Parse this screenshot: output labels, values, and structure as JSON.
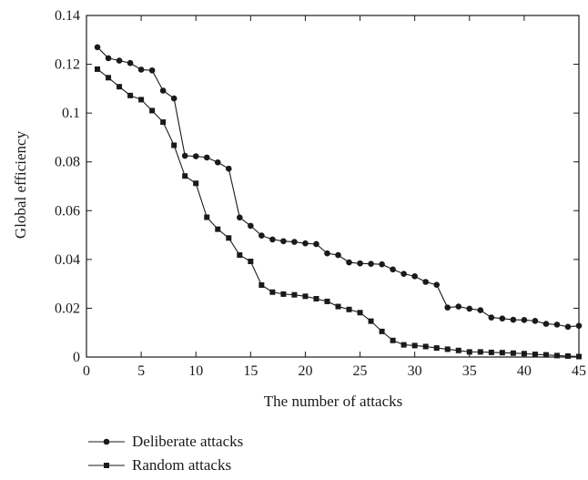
{
  "chart_data": {
    "type": "line",
    "xlabel": "The number of attacks",
    "ylabel": "Global efficiency",
    "xlim": [
      0,
      45
    ],
    "ylim": [
      0,
      0.14
    ],
    "xticks": [
      0,
      5,
      10,
      15,
      20,
      25,
      30,
      35,
      40,
      45
    ],
    "xtick_labels": [
      "0",
      "5",
      "10",
      "15",
      "20",
      "25",
      "30",
      "35",
      "40",
      "45"
    ],
    "yticks": [
      0,
      0.02,
      0.04,
      0.06,
      0.08,
      0.1,
      0.12,
      0.14
    ],
    "ytick_labels": [
      "0",
      "0.02",
      "0.04",
      "0.06",
      "0.08",
      "0.1",
      "0.12",
      "0.14"
    ],
    "grid": false,
    "legend_position": "bottom-left",
    "series": [
      {
        "name": "Deliberate attacks",
        "marker": "circle",
        "x": [
          1,
          2,
          3,
          4,
          5,
          6,
          7,
          8,
          9,
          10,
          11,
          12,
          13,
          14,
          15,
          16,
          17,
          18,
          19,
          20,
          21,
          22,
          23,
          24,
          25,
          26,
          27,
          28,
          29,
          30,
          31,
          32,
          33,
          34,
          35,
          36,
          37,
          38,
          39,
          40,
          41,
          42,
          43,
          44,
          45
        ],
        "values": [
          0.127,
          0.1225,
          0.1215,
          0.1205,
          0.1178,
          0.1175,
          0.1092,
          0.106,
          0.0825,
          0.0823,
          0.0818,
          0.0798,
          0.0772,
          0.0572,
          0.0538,
          0.0498,
          0.0482,
          0.0475,
          0.0472,
          0.0466,
          0.0463,
          0.0425,
          0.0418,
          0.0388,
          0.0384,
          0.0382,
          0.038,
          0.0359,
          0.0341,
          0.0331,
          0.0308,
          0.0296,
          0.0203,
          0.0207,
          0.0198,
          0.0192,
          0.0162,
          0.0158,
          0.0153,
          0.0152,
          0.0148,
          0.0136,
          0.0133,
          0.0124,
          0.0128
        ]
      },
      {
        "name": "Random attacks",
        "marker": "square",
        "x": [
          1,
          2,
          3,
          4,
          5,
          6,
          7,
          8,
          9,
          10,
          11,
          12,
          13,
          14,
          15,
          16,
          17,
          18,
          19,
          20,
          21,
          22,
          23,
          24,
          25,
          26,
          27,
          28,
          29,
          30,
          31,
          32,
          33,
          34,
          35,
          36,
          37,
          38,
          39,
          40,
          41,
          42,
          43,
          44,
          45
        ],
        "values": [
          0.118,
          0.1145,
          0.1108,
          0.1072,
          0.1055,
          0.101,
          0.0963,
          0.0868,
          0.0742,
          0.0712,
          0.0573,
          0.0524,
          0.0488,
          0.0418,
          0.0392,
          0.0295,
          0.0266,
          0.0258,
          0.0255,
          0.0249,
          0.0239,
          0.0228,
          0.0207,
          0.0195,
          0.0182,
          0.0147,
          0.0105,
          0.0068,
          0.005,
          0.0047,
          0.0043,
          0.0037,
          0.0032,
          0.0027,
          0.0021,
          0.0021,
          0.0019,
          0.0018,
          0.0016,
          0.0014,
          0.0011,
          0.0009,
          0.0006,
          0.0004,
          0.0002
        ]
      }
    ]
  }
}
